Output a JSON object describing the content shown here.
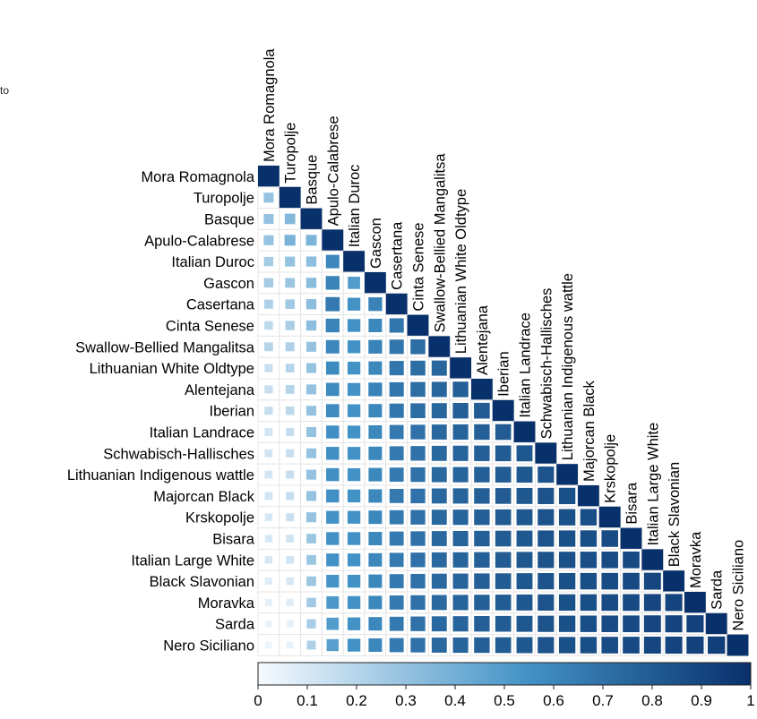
{
  "corner_text": "to",
  "colors": {
    "scale_low": "#f7fbff",
    "scale_mid": "#4292c6",
    "scale_high": "#08306b",
    "cell_bg": "#ffffff",
    "grid_line": "#e6e6e6"
  },
  "chart_data": {
    "type": "heatmap",
    "subtype": "correlation-lower-triangle",
    "title": "",
    "breeds": [
      "Mora Romagnola",
      "Turopolje",
      "Basque",
      "Apulo-Calabrese",
      "Italian Duroc",
      "Gascon",
      "Casertana",
      "Cinta Senese",
      "Swallow-Bellied Mangalitsa",
      "Lithuanian White Oldtype",
      "Alentejana",
      "Iberian",
      "Italian Landrace",
      "Schwabisch-Hallisches",
      "Lithuanian Indigenous wattle",
      "Majorcan Black",
      "Krskopolje",
      "Bisara",
      "Italian Large White",
      "Black Slavonian",
      "Moravka",
      "Sarda",
      "Nero Siciliano"
    ],
    "colorbar": {
      "min": 0,
      "max": 1,
      "ticks": [
        0,
        0.1,
        0.2,
        0.3,
        0.4,
        0.5,
        0.6,
        0.7,
        0.8,
        0.9,
        1
      ],
      "tick_labels": [
        "0",
        "0.1",
        "0.2",
        "0.3",
        "0.4",
        "0.5",
        "0.6",
        "0.7",
        "0.8",
        "0.9",
        "1"
      ]
    },
    "matrix": [
      [
        1
      ],
      [
        0.3,
        1
      ],
      [
        0.3,
        0.35,
        1
      ],
      [
        0.3,
        0.38,
        0.37,
        1
      ],
      [
        0.25,
        0.3,
        0.32,
        0.6,
        1
      ],
      [
        0.25,
        0.28,
        0.33,
        0.62,
        0.5,
        1
      ],
      [
        0.22,
        0.26,
        0.32,
        0.66,
        0.55,
        0.62,
        1
      ],
      [
        0.18,
        0.24,
        0.32,
        0.62,
        0.55,
        0.6,
        0.68,
        1
      ],
      [
        0.2,
        0.22,
        0.3,
        0.6,
        0.55,
        0.62,
        0.68,
        0.72,
        1
      ],
      [
        0.15,
        0.2,
        0.3,
        0.58,
        0.55,
        0.6,
        0.68,
        0.72,
        0.75,
        1
      ],
      [
        0.15,
        0.2,
        0.3,
        0.58,
        0.55,
        0.62,
        0.68,
        0.72,
        0.75,
        0.78,
        1
      ],
      [
        0.15,
        0.18,
        0.3,
        0.58,
        0.55,
        0.6,
        0.68,
        0.72,
        0.75,
        0.78,
        0.8,
        1
      ],
      [
        0.12,
        0.15,
        0.3,
        0.56,
        0.55,
        0.6,
        0.66,
        0.7,
        0.74,
        0.76,
        0.78,
        0.8,
        1
      ],
      [
        0.12,
        0.15,
        0.3,
        0.56,
        0.55,
        0.6,
        0.66,
        0.7,
        0.74,
        0.76,
        0.78,
        0.8,
        0.82,
        1
      ],
      [
        0.12,
        0.15,
        0.3,
        0.56,
        0.55,
        0.6,
        0.66,
        0.7,
        0.74,
        0.76,
        0.78,
        0.8,
        0.82,
        0.84,
        1
      ],
      [
        0.12,
        0.15,
        0.3,
        0.56,
        0.55,
        0.6,
        0.66,
        0.7,
        0.74,
        0.76,
        0.78,
        0.8,
        0.82,
        0.84,
        0.85,
        1
      ],
      [
        0.1,
        0.14,
        0.3,
        0.55,
        0.55,
        0.6,
        0.66,
        0.7,
        0.74,
        0.76,
        0.78,
        0.8,
        0.82,
        0.84,
        0.85,
        0.86,
        1
      ],
      [
        0.1,
        0.12,
        0.28,
        0.55,
        0.55,
        0.6,
        0.66,
        0.7,
        0.74,
        0.76,
        0.78,
        0.8,
        0.82,
        0.84,
        0.85,
        0.86,
        0.87,
        1
      ],
      [
        0.1,
        0.12,
        0.28,
        0.55,
        0.55,
        0.6,
        0.66,
        0.7,
        0.74,
        0.76,
        0.78,
        0.8,
        0.82,
        0.84,
        0.85,
        0.86,
        0.87,
        0.88,
        1
      ],
      [
        0.08,
        0.1,
        0.28,
        0.54,
        0.55,
        0.6,
        0.66,
        0.7,
        0.74,
        0.76,
        0.78,
        0.8,
        0.82,
        0.84,
        0.85,
        0.86,
        0.87,
        0.88,
        0.9,
        1
      ],
      [
        0.06,
        0.08,
        0.26,
        0.52,
        0.55,
        0.6,
        0.66,
        0.7,
        0.74,
        0.76,
        0.78,
        0.8,
        0.82,
        0.84,
        0.85,
        0.86,
        0.87,
        0.88,
        0.9,
        0.91,
        1
      ],
      [
        0.04,
        0.06,
        0.24,
        0.5,
        0.55,
        0.6,
        0.66,
        0.7,
        0.74,
        0.76,
        0.78,
        0.8,
        0.82,
        0.84,
        0.85,
        0.86,
        0.87,
        0.88,
        0.9,
        0.91,
        0.92,
        1
      ],
      [
        0.03,
        0.05,
        0.22,
        0.48,
        0.55,
        0.6,
        0.66,
        0.7,
        0.74,
        0.76,
        0.78,
        0.8,
        0.82,
        0.84,
        0.85,
        0.86,
        0.87,
        0.88,
        0.9,
        0.91,
        0.92,
        0.93,
        1
      ]
    ]
  }
}
